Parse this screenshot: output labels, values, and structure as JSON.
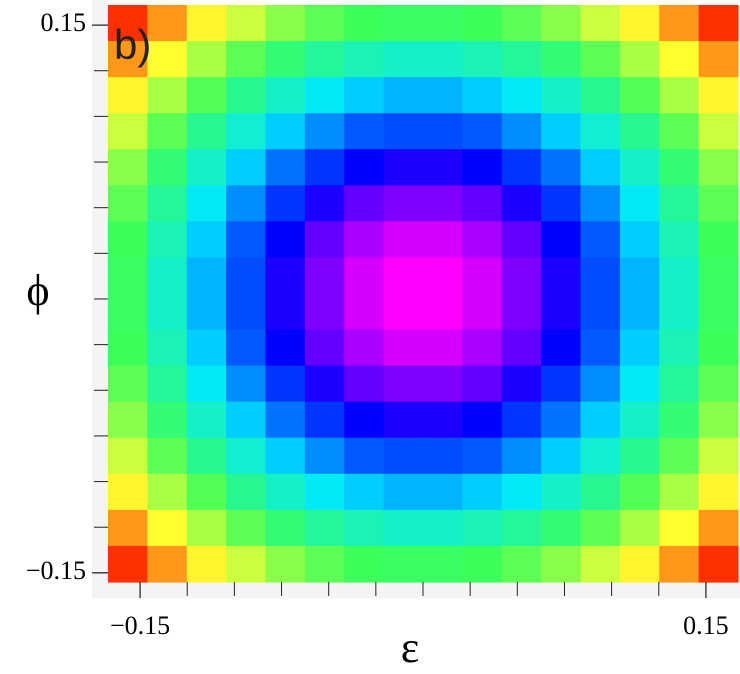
{
  "chart_data": {
    "type": "heatmap",
    "panel_label": "b)",
    "xlabel": "ε",
    "ylabel": "ϕ",
    "xlim": [
      -0.167,
      0.167
    ],
    "ylim": [
      -0.155,
      0.161
    ],
    "xticks": [
      {
        "value": -0.15,
        "label": "−0.15"
      },
      0.15
    ],
    "yticks": [
      {
        "value": -0.15,
        "label": "−0.15"
      },
      0.15
    ],
    "xminorticks": [
      -0.15,
      -0.125,
      -0.1,
      -0.075,
      -0.05,
      -0.025,
      0,
      0.025,
      0.05,
      0.075,
      0.1,
      0.125,
      0.15
    ],
    "yminorticks": [
      -0.15,
      -0.125,
      -0.1,
      -0.075,
      -0.05,
      -0.025,
      0,
      0.025,
      0.05,
      0.075,
      0.1,
      0.125,
      0.15
    ],
    "colormap": [
      "#ff00ff",
      "#0000ff",
      "#00e8ff",
      "#3cff5a",
      "#ffff30",
      "#ff3000"
    ],
    "z": [
      [
        0.92,
        0.83,
        0.75,
        0.69,
        0.63,
        0.59,
        0.56,
        0.55,
        0.55,
        0.56,
        0.59,
        0.63,
        0.69,
        0.75,
        0.83,
        0.92
      ],
      [
        0.83,
        0.74,
        0.66,
        0.59,
        0.53,
        0.49,
        0.46,
        0.44,
        0.44,
        0.46,
        0.49,
        0.53,
        0.59,
        0.66,
        0.74,
        0.83
      ],
      [
        0.75,
        0.66,
        0.58,
        0.5,
        0.44,
        0.39,
        0.36,
        0.34,
        0.34,
        0.36,
        0.39,
        0.44,
        0.5,
        0.58,
        0.66,
        0.75
      ],
      [
        0.69,
        0.59,
        0.5,
        0.43,
        0.36,
        0.31,
        0.27,
        0.26,
        0.26,
        0.27,
        0.31,
        0.36,
        0.43,
        0.5,
        0.59,
        0.69
      ],
      [
        0.63,
        0.53,
        0.44,
        0.36,
        0.29,
        0.24,
        0.2,
        0.18,
        0.18,
        0.2,
        0.24,
        0.29,
        0.36,
        0.44,
        0.53,
        0.63
      ],
      [
        0.59,
        0.49,
        0.39,
        0.31,
        0.24,
        0.18,
        0.13,
        0.11,
        0.11,
        0.13,
        0.18,
        0.24,
        0.31,
        0.39,
        0.49,
        0.59
      ],
      [
        0.56,
        0.46,
        0.36,
        0.27,
        0.2,
        0.13,
        0.08,
        0.05,
        0.05,
        0.08,
        0.13,
        0.2,
        0.27,
        0.36,
        0.46,
        0.56
      ],
      [
        0.55,
        0.44,
        0.34,
        0.26,
        0.18,
        0.11,
        0.05,
        0.02,
        0.02,
        0.05,
        0.11,
        0.18,
        0.26,
        0.34,
        0.44,
        0.55
      ],
      [
        0.55,
        0.44,
        0.34,
        0.26,
        0.18,
        0.11,
        0.05,
        0.02,
        0.02,
        0.05,
        0.11,
        0.18,
        0.26,
        0.34,
        0.44,
        0.55
      ],
      [
        0.56,
        0.46,
        0.36,
        0.27,
        0.2,
        0.13,
        0.08,
        0.05,
        0.05,
        0.08,
        0.13,
        0.2,
        0.27,
        0.36,
        0.46,
        0.56
      ],
      [
        0.59,
        0.49,
        0.39,
        0.31,
        0.24,
        0.18,
        0.13,
        0.11,
        0.11,
        0.13,
        0.18,
        0.24,
        0.31,
        0.39,
        0.49,
        0.59
      ],
      [
        0.63,
        0.53,
        0.44,
        0.36,
        0.29,
        0.24,
        0.2,
        0.18,
        0.18,
        0.2,
        0.24,
        0.29,
        0.36,
        0.44,
        0.53,
        0.63
      ],
      [
        0.69,
        0.59,
        0.5,
        0.43,
        0.36,
        0.31,
        0.27,
        0.26,
        0.26,
        0.27,
        0.31,
        0.36,
        0.43,
        0.5,
        0.59,
        0.69
      ],
      [
        0.75,
        0.66,
        0.58,
        0.5,
        0.44,
        0.39,
        0.36,
        0.34,
        0.34,
        0.36,
        0.39,
        0.44,
        0.5,
        0.58,
        0.66,
        0.75
      ],
      [
        0.83,
        0.74,
        0.66,
        0.59,
        0.53,
        0.49,
        0.46,
        0.44,
        0.44,
        0.46,
        0.49,
        0.53,
        0.59,
        0.66,
        0.74,
        0.83
      ],
      [
        0.92,
        0.83,
        0.75,
        0.69,
        0.63,
        0.59,
        0.56,
        0.55,
        0.55,
        0.56,
        0.59,
        0.63,
        0.69,
        0.75,
        0.83,
        0.92
      ]
    ]
  }
}
